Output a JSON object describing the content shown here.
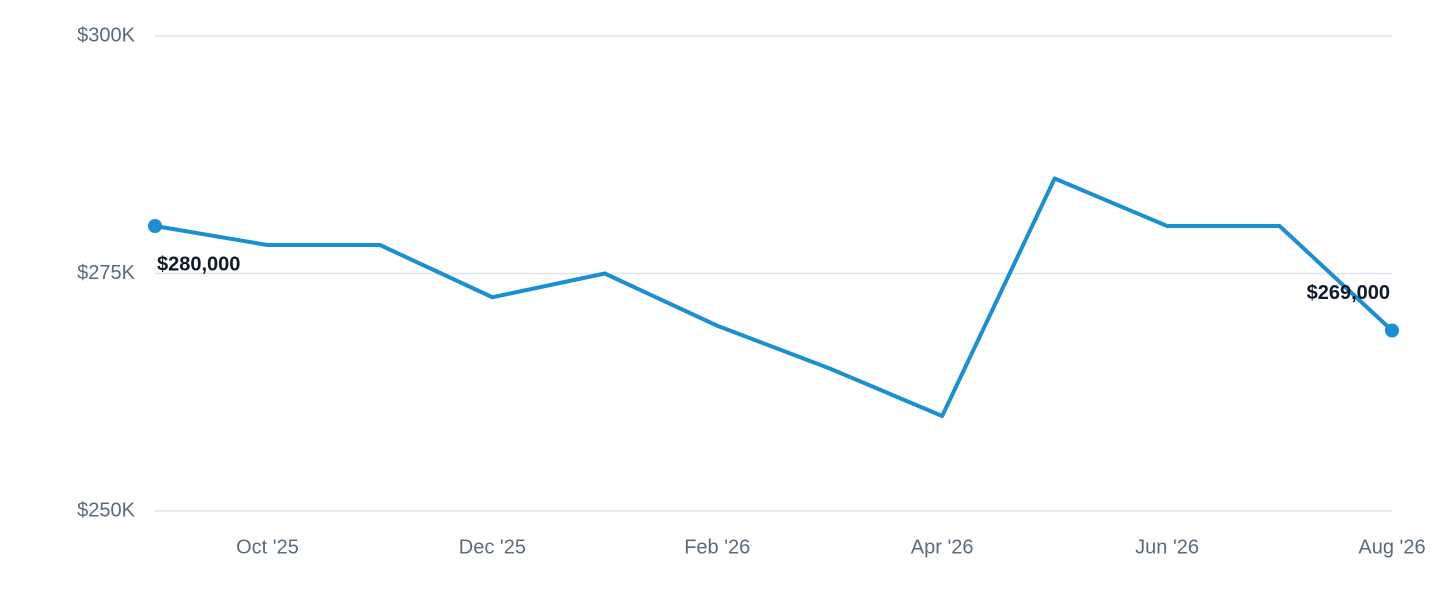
{
  "chart_data": {
    "type": "line",
    "categories": [
      null,
      "Oct '25",
      null,
      "Dec '25",
      null,
      "Feb '26",
      null,
      "Apr '26",
      null,
      "Jun '26",
      null,
      "Aug '26"
    ],
    "values": [
      280000,
      278000,
      278000,
      272500,
      275000,
      269500,
      265000,
      260000,
      285000,
      280000,
      280000,
      269000
    ],
    "value_labels": [
      "$280,000",
      null,
      null,
      null,
      null,
      null,
      null,
      null,
      null,
      null,
      null,
      "$269,000"
    ],
    "color": "#1a8fd1",
    "ylim": [
      250000,
      300000
    ],
    "yticks": [
      {
        "value": 250000,
        "label": "$250K"
      },
      {
        "value": 275000,
        "label": "$275K"
      },
      {
        "value": 300000,
        "label": "$300K"
      }
    ],
    "grid": true
  }
}
